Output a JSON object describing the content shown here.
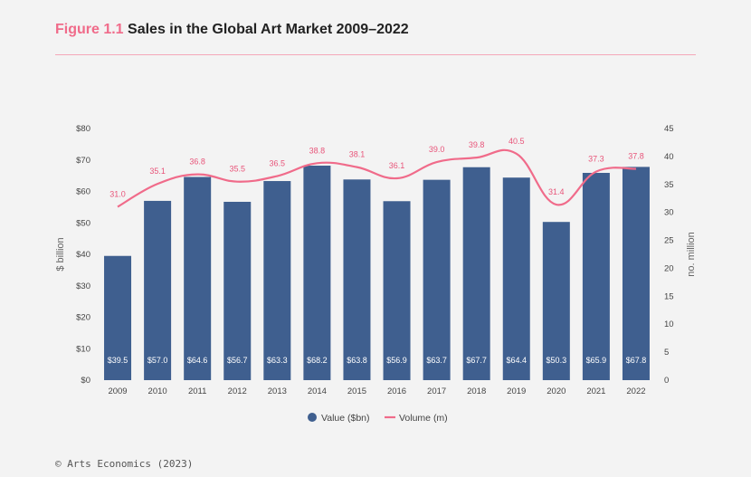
{
  "title": {
    "figure_label": "Figure 1.1",
    "text": "Sales in the Global Art Market 2009–2022"
  },
  "footer": "© Arts Economics (2023)",
  "colors": {
    "bar": "#3f5f8f",
    "line": "#f06b8a",
    "accent": "#f06b8a"
  },
  "chart_data": {
    "type": "bar",
    "categories": [
      "2009",
      "2010",
      "2011",
      "2012",
      "2013",
      "2014",
      "2015",
      "2016",
      "2017",
      "2018",
      "2019",
      "2020",
      "2021",
      "2022"
    ],
    "series": [
      {
        "name": "Value ($bn)",
        "type": "bar",
        "axis": "left",
        "values": [
          39.5,
          57.0,
          64.6,
          56.7,
          63.3,
          68.2,
          63.8,
          56.9,
          63.7,
          67.7,
          64.4,
          50.3,
          65.9,
          67.8
        ],
        "labels": [
          "$39.5",
          "$57.0",
          "$64.6",
          "$56.7",
          "$63.3",
          "$68.2",
          "$63.8",
          "$56.9",
          "$63.7",
          "$67.7",
          "$64.4",
          "$50.3",
          "$65.9",
          "$67.8"
        ]
      },
      {
        "name": "Volume (m)",
        "type": "line",
        "axis": "right",
        "values": [
          31.0,
          35.1,
          36.8,
          35.5,
          36.5,
          38.8,
          38.1,
          36.1,
          39.0,
          39.8,
          40.5,
          31.4,
          37.3,
          37.8
        ],
        "labels": [
          "31.0",
          "35.1",
          "36.8",
          "35.5",
          "36.5",
          "38.8",
          "38.1",
          "36.1",
          "39.0",
          "39.8",
          "40.5",
          "31.4",
          "37.3",
          "37.8"
        ]
      }
    ],
    "ylabel_left": "$ billion",
    "ylabel_right": "no. million",
    "ylim_left": [
      0,
      80
    ],
    "ylim_right": [
      0,
      45
    ],
    "yticks_left": [
      "$0",
      "$10",
      "$20",
      "$30",
      "$40",
      "$50",
      "$60",
      "$70",
      "$80"
    ],
    "yticks_right": [
      "0",
      "5",
      "10",
      "15",
      "20",
      "25",
      "30",
      "35",
      "40",
      "45"
    ],
    "grid": false,
    "legend_position": "bottom-center"
  }
}
